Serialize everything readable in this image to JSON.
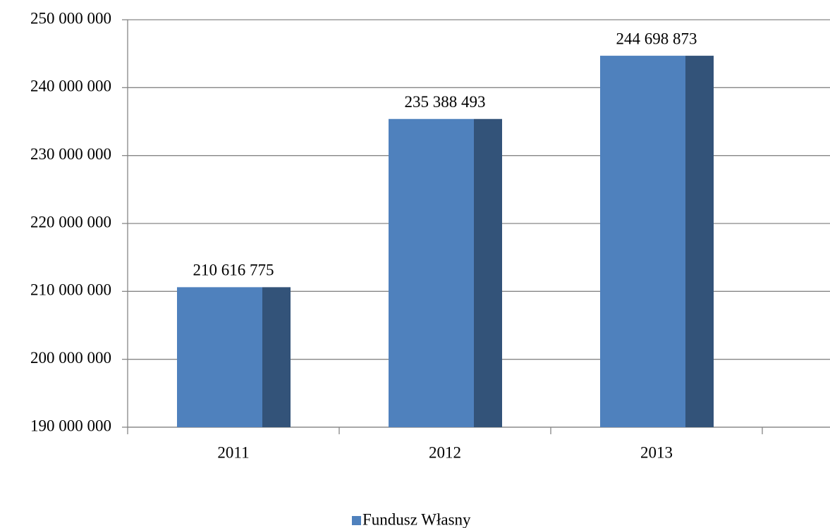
{
  "chart_data": {
    "type": "bar",
    "categories": [
      "2011",
      "2012",
      "2013"
    ],
    "series": [
      {
        "name": "Fundusz Własny",
        "color": "#4f81bd",
        "values": [
          210616775,
          235388493,
          244698873
        ],
        "value_labels": [
          "210 616 775",
          "235 388 493",
          "244 698 873"
        ]
      }
    ],
    "ylim": [
      190000000,
      250000000
    ],
    "yticks": [
      {
        "value": 190000000,
        "label": "190 000 000"
      },
      {
        "value": 200000000,
        "label": "200 000 000"
      },
      {
        "value": 210000000,
        "label": "210 000 000"
      },
      {
        "value": 220000000,
        "label": "220 000 000"
      },
      {
        "value": 230000000,
        "label": "230 000 000"
      },
      {
        "value": 240000000,
        "label": "240 000 000"
      },
      {
        "value": 250000000,
        "label": "250 000 000"
      }
    ],
    "grid": true,
    "legend": "bottom"
  }
}
